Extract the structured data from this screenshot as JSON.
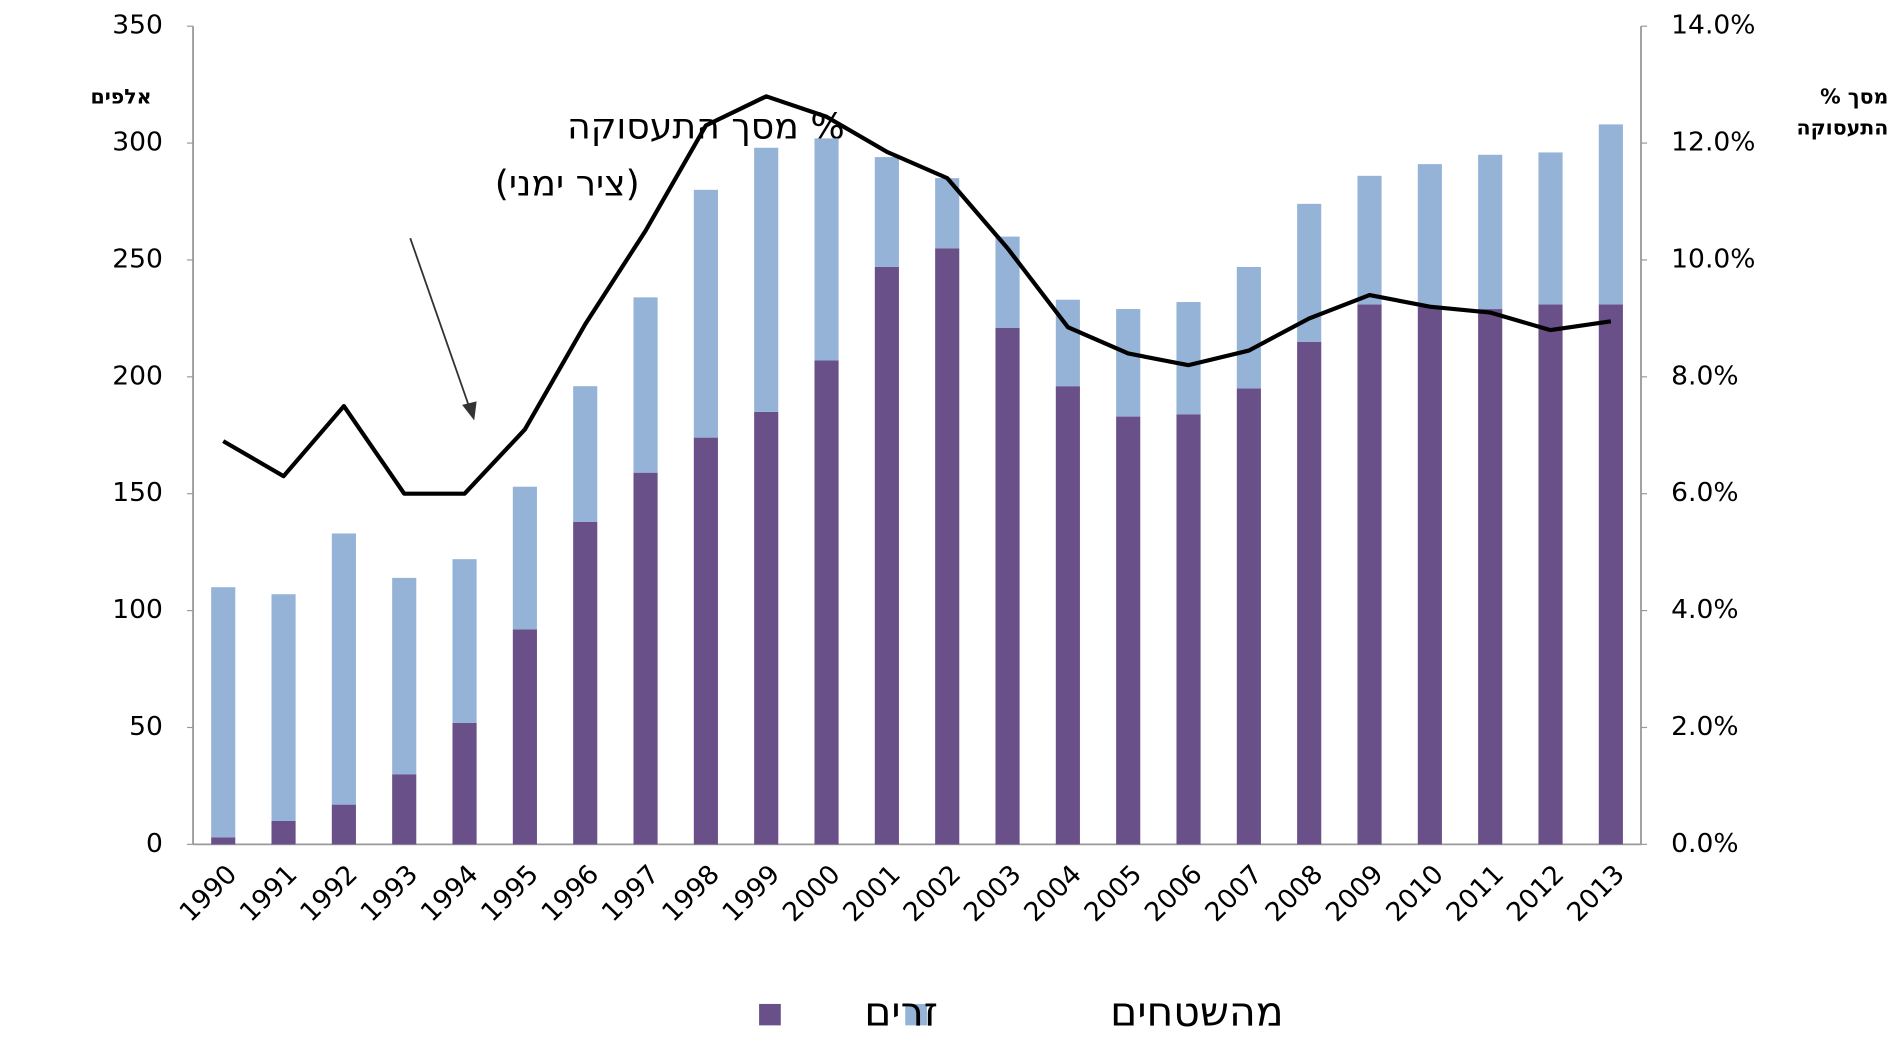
{
  "chart_data": {
    "type": "stacked-bar-line",
    "categories": [
      "1990",
      "1991",
      "1992",
      "1993",
      "1994",
      "1995",
      "1996",
      "1997",
      "1998",
      "1999",
      "2000",
      "2001",
      "2002",
      "2003",
      "2004",
      "2005",
      "2006",
      "2007",
      "2008",
      "2009",
      "2010",
      "2011",
      "2012",
      "2013"
    ],
    "series": [
      {
        "name": "זרים",
        "color": "#6a5088",
        "values": [
          3,
          10,
          17,
          30,
          52,
          92,
          138,
          159,
          174,
          185,
          207,
          247,
          255,
          221,
          196,
          183,
          184,
          195,
          215,
          231,
          230,
          229,
          231,
          231
        ]
      },
      {
        "name": "מהשטחים",
        "color": "#95b3d7",
        "values": [
          107,
          97,
          116,
          84,
          70,
          61,
          58,
          75,
          106,
          113,
          95,
          47,
          30,
          39,
          37,
          46,
          48,
          52,
          59,
          55,
          61,
          66,
          65,
          77
        ]
      },
      {
        "name": "% מסך התעסוקה",
        "color": "#000000",
        "axis": "y2",
        "type": "line",
        "values": [
          6.9,
          6.3,
          7.5,
          6.0,
          6.0,
          7.1,
          8.9,
          10.5,
          12.3,
          12.8,
          12.45,
          11.85,
          11.4,
          10.2,
          8.85,
          8.4,
          8.2,
          8.45,
          9.0,
          9.4,
          9.2,
          9.1,
          8.8,
          8.95
        ]
      }
    ],
    "ylabel": "אלפים",
    "y2label": [
      "% מסך",
      "התעסוקה"
    ],
    "annotation": [
      "% מסך התעסוקה",
      "(ציר ימני)"
    ],
    "ylim": [
      0,
      350
    ],
    "yticks": [
      0,
      50,
      100,
      150,
      200,
      250,
      300,
      350
    ],
    "y2lim": [
      0,
      14
    ],
    "y2ticks": [
      {
        "value": 0,
        "label": "0.0%"
      },
      {
        "value": 2,
        "label": "2.0%"
      },
      {
        "value": 4,
        "label": "4.0%"
      },
      {
        "value": 6,
        "label": "6.0%"
      },
      {
        "value": 8,
        "label": "8.0%"
      },
      {
        "value": 10,
        "label": "10.0%"
      },
      {
        "value": 12,
        "label": "12.0%"
      },
      {
        "value": 14,
        "label": "14.0%"
      }
    ]
  }
}
